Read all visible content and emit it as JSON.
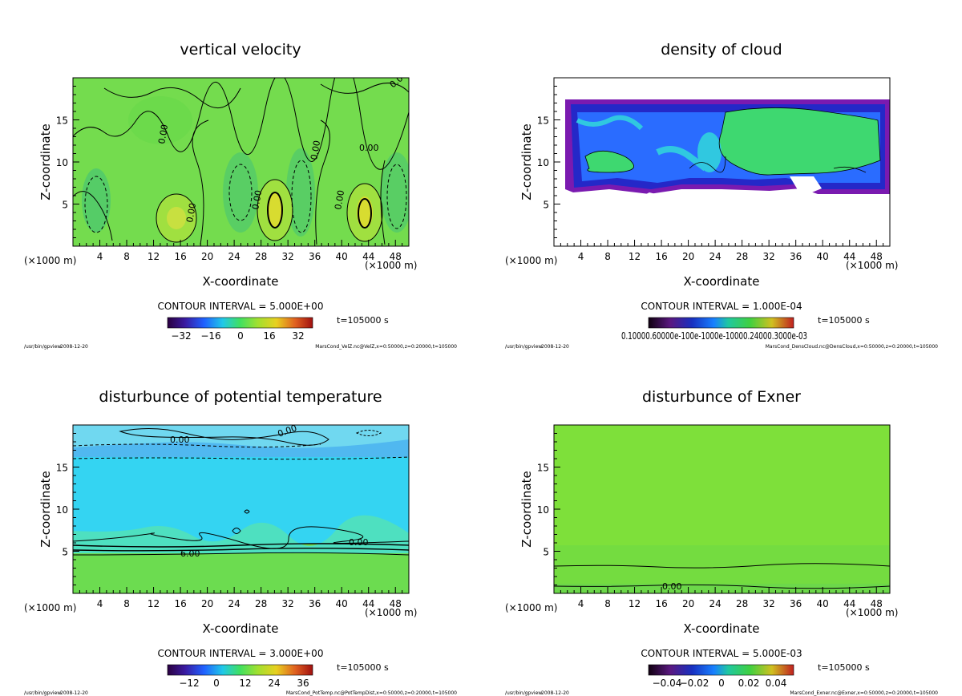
{
  "common": {
    "xlabel": "X-coordinate",
    "ylabel": "Z-coordinate",
    "unit": "(×1000 m)",
    "xticks": [
      "4",
      "8",
      "12",
      "16",
      "20",
      "24",
      "28",
      "32",
      "36",
      "40",
      "44",
      "48"
    ],
    "yticks": [
      "5",
      "10",
      "15"
    ],
    "time": "t=105000 s",
    "program": "/usr/bin/gpview",
    "date": "2008-12-20"
  },
  "chart_data": [
    {
      "type": "heatmap",
      "title": "vertical velocity",
      "xlabel": "X-coordinate",
      "ylabel": "Z-coordinate",
      "xlim": [
        0,
        50
      ],
      "ylim": [
        0,
        20
      ],
      "contour_interval": "CONTOUR INTERVAL = 5.000E+00",
      "colorbar_ticks": [
        "−32",
        "−16",
        "0",
        "16",
        "32"
      ],
      "contour_labels": [
        "0.00",
        "0.00",
        "0.00",
        "0.00",
        "0.00",
        "0.00",
        "0.00"
      ],
      "source": "MarsCond_VelZ.nc@VelZ,x=0:50000,z=0:20000,t=105000"
    },
    {
      "type": "heatmap",
      "title": "density of cloud",
      "xlabel": "X-coordinate",
      "ylabel": "Z-coordinate",
      "xlim": [
        0,
        50
      ],
      "ylim": [
        0,
        20
      ],
      "contour_interval": "CONTOUR INTERVAL = 1.000E-04",
      "colorbar_ticks": [
        "0.10000.60000e-100e-1000e-10000.24000.3000e-03"
      ],
      "source": "MarsCond_DensCloud.nc@DensCloud,x=0:50000,z=0:20000,t=105000"
    },
    {
      "type": "heatmap",
      "title": "disturbunce of potential temperature",
      "xlabel": "X-coordinate",
      "ylabel": "Z-coordinate",
      "xlim": [
        0,
        50
      ],
      "ylim": [
        0,
        20
      ],
      "contour_interval": "CONTOUR INTERVAL = 3.000E+00",
      "colorbar_ticks": [
        "−12",
        "0",
        "12",
        "24",
        "36"
      ],
      "contour_labels": [
        "0.00",
        "0.00",
        "0.00",
        "6.00"
      ],
      "source": "MarsCond_PotTemp.nc@PotTempDist,x=0:50000,z=0:20000,t=105000"
    },
    {
      "type": "heatmap",
      "title": "disturbunce of Exner",
      "xlabel": "X-coordinate",
      "ylabel": "Z-coordinate",
      "xlim": [
        0,
        50
      ],
      "ylim": [
        0,
        20
      ],
      "contour_interval": "CONTOUR INTERVAL = 5.000E-03",
      "colorbar_ticks": [
        "−0.04",
        "−0.02",
        "0",
        "0.02",
        "0.04"
      ],
      "contour_labels": [
        "0.00"
      ],
      "source": "MarsCond_Exner.nc@Exner,x=0:50000,z=0:20000,t=105000"
    }
  ]
}
